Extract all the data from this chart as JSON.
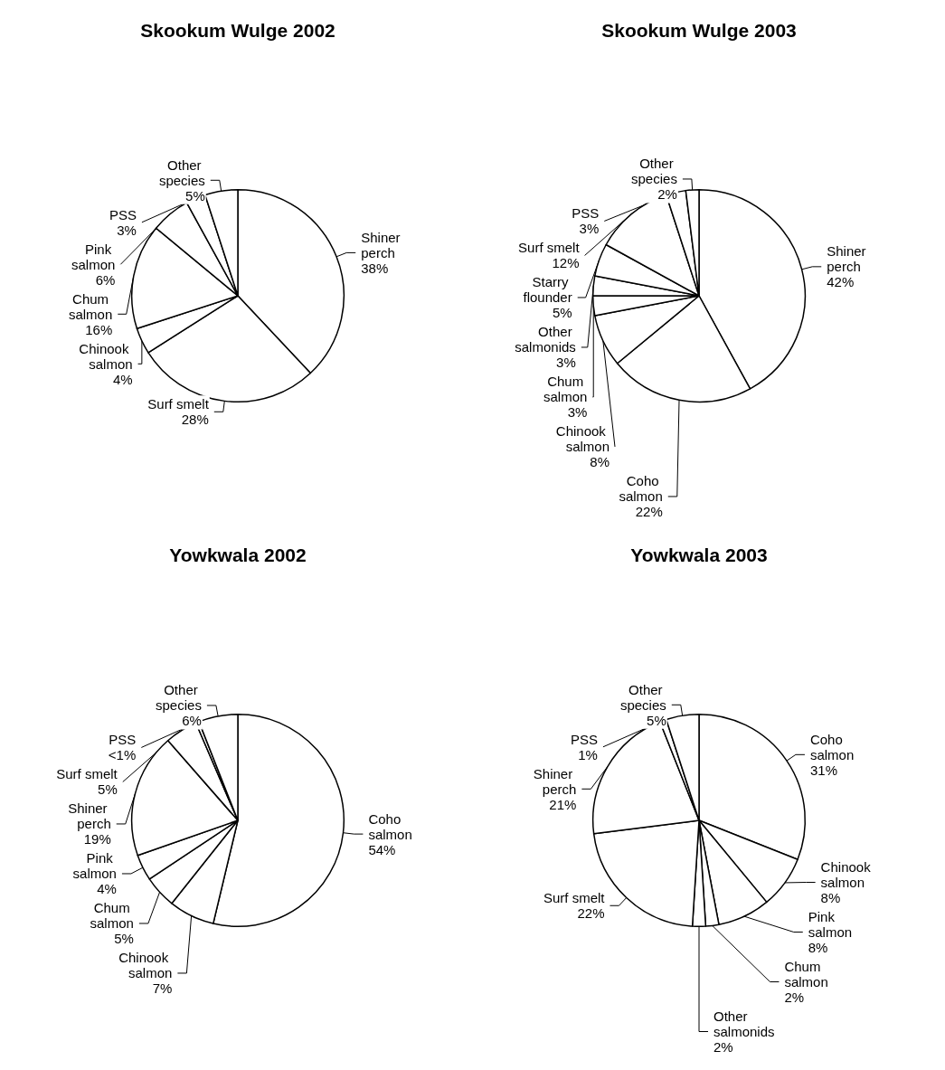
{
  "chart_data": [
    {
      "type": "pie",
      "title": "Skookum Wulge 2002",
      "categories": [
        "Shiner perch",
        "Surf smelt",
        "Chinook salmon",
        "Chum salmon",
        "Pink salmon",
        "PSS",
        "Other species"
      ],
      "values": [
        38,
        28,
        4,
        16,
        6,
        3,
        5
      ],
      "value_labels": [
        "38%",
        "28%",
        "4%",
        "16%",
        "6%",
        "3%",
        "5%"
      ],
      "colors": [
        "#ffffff",
        "#ffffff",
        "#ffffff",
        "#ffffff",
        "#ffffff",
        "#ffffff",
        "#ffffff"
      ]
    },
    {
      "type": "pie",
      "title": "Skookum Wulge 2003",
      "categories": [
        "Shiner perch",
        "Coho salmon",
        "Chinook salmon",
        "Chum salmon",
        "Other salmonids",
        "Starry flounder",
        "Surf smelt",
        "PSS",
        "Other species"
      ],
      "values": [
        42,
        22,
        8,
        3,
        3,
        5,
        12,
        3,
        2
      ],
      "value_labels": [
        "42%",
        "22%",
        "8%",
        "3%",
        "3%",
        "5%",
        "12%",
        "3%",
        "2%"
      ],
      "colors": [
        "#ffffff",
        "#ffffff",
        "#ffffff",
        "#ffffff",
        "#ffffff",
        "#ffffff",
        "#ffffff",
        "#ffffff",
        "#ffffff"
      ]
    },
    {
      "type": "pie",
      "title": "Yowkwala 2002",
      "categories": [
        "Coho salmon",
        "Chinook salmon",
        "Chum salmon",
        "Pink salmon",
        "Shiner perch",
        "Surf smelt",
        "PSS",
        "Other species"
      ],
      "values": [
        54,
        7,
        5,
        4,
        19,
        5,
        0.5,
        6
      ],
      "value_labels": [
        "54%",
        "7%",
        "5%",
        "4%",
        "19%",
        "5%",
        "<1%",
        "6%"
      ],
      "colors": [
        "#ffffff",
        "#ffffff",
        "#ffffff",
        "#ffffff",
        "#ffffff",
        "#ffffff",
        "#ffffff",
        "#ffffff"
      ]
    },
    {
      "type": "pie",
      "title": "Yowkwala 2003",
      "categories": [
        "Coho salmon",
        "Chinook salmon",
        "Pink salmon",
        "Chum salmon",
        "Other salmonids",
        "Surf smelt",
        "Shiner perch",
        "PSS",
        "Other species"
      ],
      "values": [
        31,
        8,
        8,
        2,
        2,
        22,
        21,
        1,
        5
      ],
      "value_labels": [
        "31%",
        "8%",
        "8%",
        "2%",
        "2%",
        "22%",
        "21%",
        "1%",
        "5%"
      ],
      "colors": [
        "#ffffff",
        "#ffffff",
        "#ffffff",
        "#ffffff",
        "#ffffff",
        "#ffffff",
        "#ffffff",
        "#ffffff",
        "#ffffff"
      ]
    }
  ]
}
